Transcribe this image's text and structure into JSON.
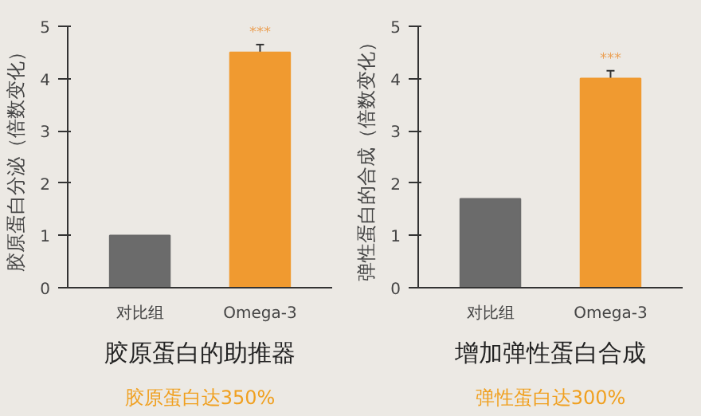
{
  "chart_data": [
    {
      "type": "bar",
      "title": "胶原蛋白的助推器",
      "subtitle": "胶原蛋白达350%",
      "ylabel": "胶原蛋白分泌（倍数变化）",
      "categories": [
        "对比组",
        "Omega-3"
      ],
      "values": [
        1,
        4.5
      ],
      "colors": [
        "#6b6b6b",
        "#f09a30"
      ],
      "errors": [
        null,
        0.15
      ],
      "annotations": [
        "***"
      ],
      "ylim": [
        0,
        5
      ],
      "yticks": [
        0,
        1,
        2,
        3,
        4,
        5
      ],
      "grid": false
    },
    {
      "type": "bar",
      "title": "增加弹性蛋白合成",
      "subtitle": "弹性蛋白达300%",
      "ylabel": "弹性蛋白的合成（倍数变化）",
      "categories": [
        "对比组",
        "Omega-3"
      ],
      "values": [
        1.7,
        4.0
      ],
      "colors": [
        "#6b6b6b",
        "#f09a30"
      ],
      "errors": [
        null,
        0.15
      ],
      "annotations": [
        "***"
      ],
      "ylim": [
        0,
        5
      ],
      "yticks": [
        0,
        1,
        2,
        3,
        4,
        5
      ],
      "grid": false
    }
  ]
}
